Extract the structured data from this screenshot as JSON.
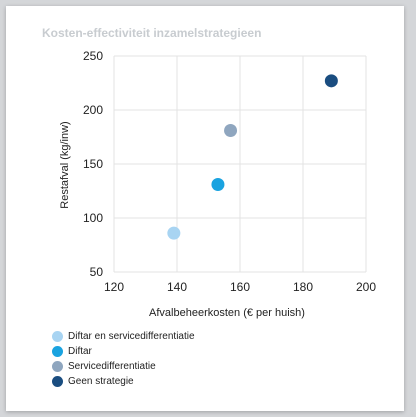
{
  "chart_data": {
    "type": "scatter",
    "title": "Kosten-effectiviteit inzamelstrategieen",
    "xlabel": "Afvalbeheerkosten (€ per huish)",
    "ylabel": "Restafval (kg/inw)",
    "xlim": [
      120,
      200
    ],
    "ylim": [
      50,
      250
    ],
    "xticks": [
      "120",
      "140",
      "160",
      "180",
      "200"
    ],
    "yticks": [
      "250",
      "200",
      "150",
      "100",
      "50"
    ],
    "grid": true,
    "legend_position": "bottom-left",
    "series": [
      {
        "name": "Diftar en servicedifferentiatie",
        "color": "#a8d4f2",
        "points": [
          {
            "x": 139,
            "y": 86
          }
        ]
      },
      {
        "name": "Diftar",
        "color": "#1aa3e0",
        "points": [
          {
            "x": 153,
            "y": 131
          }
        ]
      },
      {
        "name": "Servicedifferentiatie",
        "color": "#8fa6bf",
        "points": [
          {
            "x": 157,
            "y": 181
          }
        ]
      },
      {
        "name": "Geen strategie",
        "color": "#1a4d80",
        "points": [
          {
            "x": 189,
            "y": 227
          }
        ]
      }
    ]
  }
}
